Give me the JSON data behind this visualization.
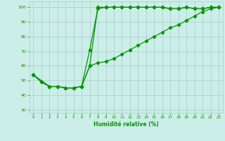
{
  "title": "",
  "xlabel": "Humidité relative (%)",
  "ylabel": "",
  "bg_color": "#cceee8",
  "grid_color": "#aacccc",
  "line_color": "#009900",
  "xlim": [
    -0.5,
    23.5
  ],
  "ylim": [
    28,
    104
  ],
  "xticks": [
    0,
    1,
    2,
    3,
    4,
    5,
    6,
    7,
    8,
    9,
    10,
    11,
    12,
    13,
    14,
    15,
    16,
    17,
    18,
    19,
    20,
    21,
    22,
    23
  ],
  "yticks": [
    30,
    40,
    50,
    60,
    70,
    80,
    90,
    100
  ],
  "series1_x": [
    0,
    1,
    2,
    3,
    4,
    5,
    6,
    7,
    8,
    9,
    10,
    11,
    12,
    13,
    14,
    15,
    16,
    17,
    18,
    19,
    20,
    21,
    22,
    23
  ],
  "series1_y": [
    54,
    49,
    46,
    46,
    45,
    45,
    46,
    71,
    99,
    100,
    100,
    100,
    100,
    100,
    100,
    100,
    100,
    99,
    99,
    100,
    99,
    99,
    100,
    100
  ],
  "series2_x": [
    0,
    1,
    2,
    3,
    4,
    5,
    6,
    7,
    8,
    9,
    10,
    11,
    12,
    13,
    14,
    15,
    16,
    17,
    18,
    19,
    20,
    21,
    22,
    23
  ],
  "series2_y": [
    54,
    49,
    46,
    46,
    45,
    45,
    46,
    60,
    100,
    100,
    100,
    100,
    100,
    100,
    100,
    100,
    100,
    99,
    99,
    100,
    99,
    99,
    100,
    100
  ],
  "series3_x": [
    0,
    2,
    3,
    4,
    5,
    6,
    7,
    8,
    9,
    10,
    11,
    12,
    13,
    14,
    15,
    16,
    17,
    18,
    19,
    20,
    21,
    22,
    23
  ],
  "series3_y": [
    54,
    46,
    46,
    45,
    45,
    46,
    60,
    62,
    63,
    65,
    68,
    71,
    74,
    77,
    80,
    83,
    86,
    88,
    91,
    94,
    97,
    99,
    100
  ],
  "marker": "D",
  "markersize": 2.2,
  "linewidth": 0.9
}
